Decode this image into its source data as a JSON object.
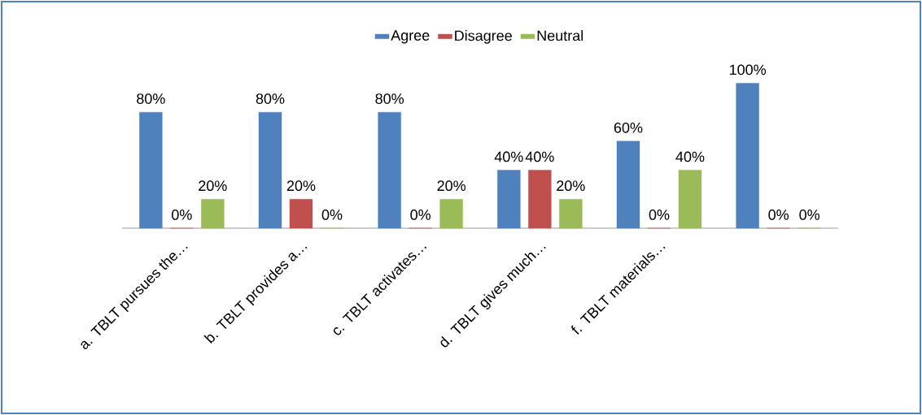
{
  "chart_data": {
    "type": "bar",
    "categories": [
      "a. TBLT pursues the…",
      "b. TBLT provides a…",
      "c. TBLT activates…",
      "d. TBLT gives much…",
      "f. TBLT materials…",
      null
    ],
    "series": [
      {
        "name": "Agree",
        "color": "#4f81bd",
        "values": [
          80,
          80,
          80,
          40,
          60,
          100
        ],
        "value_labels": [
          "80%",
          "80%",
          "80%",
          "40%",
          "60%",
          "100%"
        ]
      },
      {
        "name": "Disagree",
        "color": "#c0504d",
        "values": [
          0,
          20,
          0,
          40,
          0,
          0
        ],
        "value_labels": [
          "0%",
          "20%",
          "0%",
          "40%",
          "0%",
          "0%"
        ]
      },
      {
        "name": "Neutral",
        "color": "#9bbb59",
        "values": [
          20,
          0,
          20,
          20,
          40,
          0
        ],
        "value_labels": [
          "20%",
          "0%",
          "20%",
          "20%",
          "40%",
          "0%"
        ]
      }
    ],
    "legend": "top"
  }
}
